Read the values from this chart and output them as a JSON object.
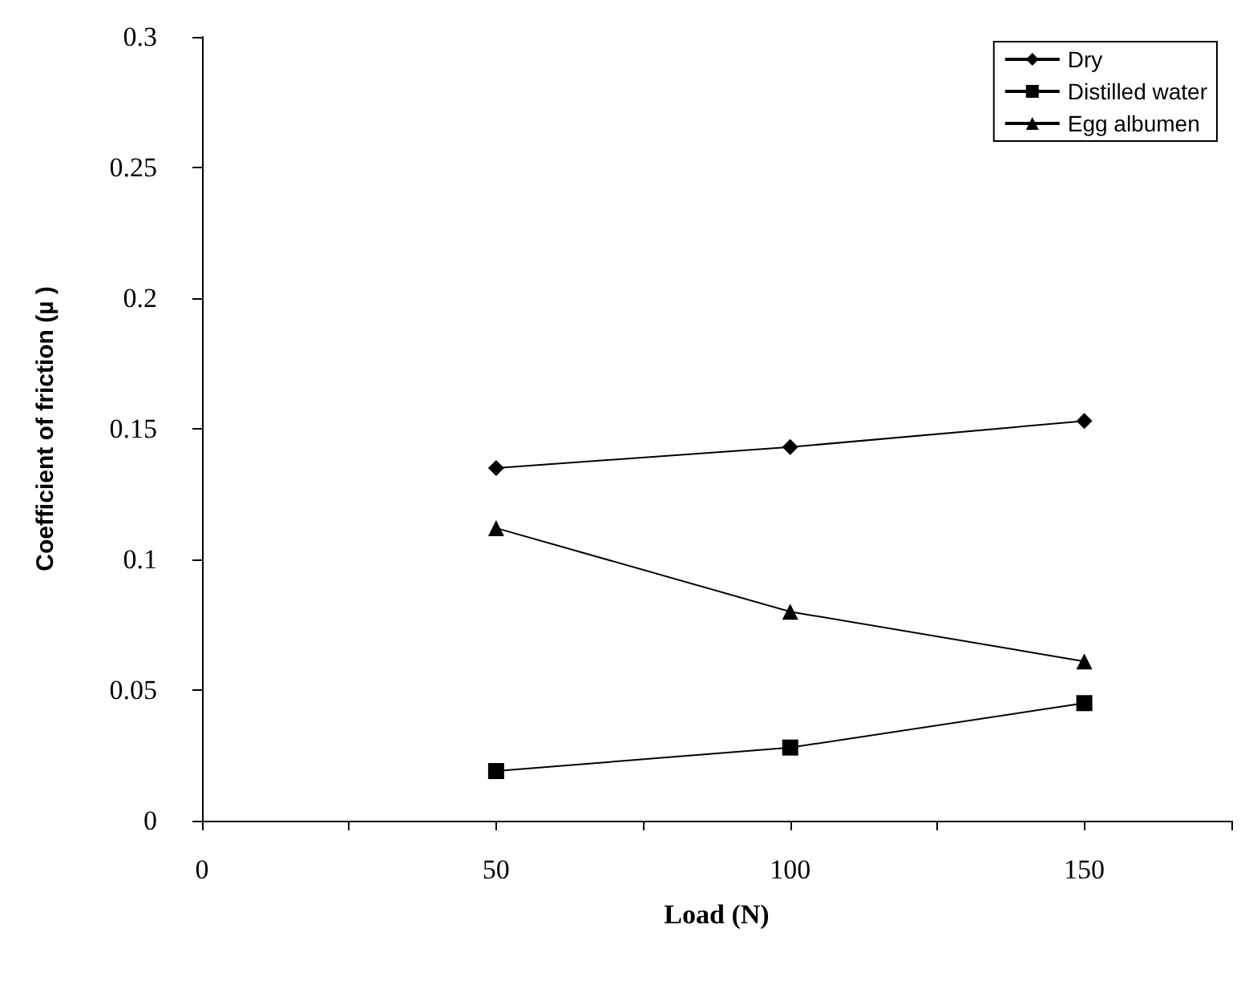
{
  "chart_data": {
    "type": "line",
    "xlabel": "Load (N)",
    "ylabel": "Coefficient of friction (µ )",
    "x": [
      50,
      100,
      150
    ],
    "series": [
      {
        "name": "Dry",
        "color": "#000000",
        "marker": "diamond",
        "values": [
          0.135,
          0.143,
          0.153
        ]
      },
      {
        "name": "Distilled water",
        "color": "#000000",
        "marker": "square",
        "values": [
          0.019,
          0.028,
          0.045
        ]
      },
      {
        "name": "Egg albumen",
        "color": "#000000",
        "marker": "triangle",
        "values": [
          0.112,
          0.08,
          0.061
        ]
      }
    ],
    "xlim": [
      0,
      175
    ],
    "xticks": [
      0,
      {
        "value": 25,
        "label": null
      },
      50,
      {
        "value": 75,
        "label": null
      },
      100,
      {
        "value": 125,
        "label": null
      },
      150,
      {
        "value": 175,
        "label": null
      }
    ],
    "ylim": [
      0,
      0.3
    ],
    "yticks": [
      0,
      0.05,
      0.1,
      0.15,
      0.2,
      0.25,
      0.3
    ],
    "grid": false,
    "legend": "top right",
    "line_style": "solid"
  }
}
